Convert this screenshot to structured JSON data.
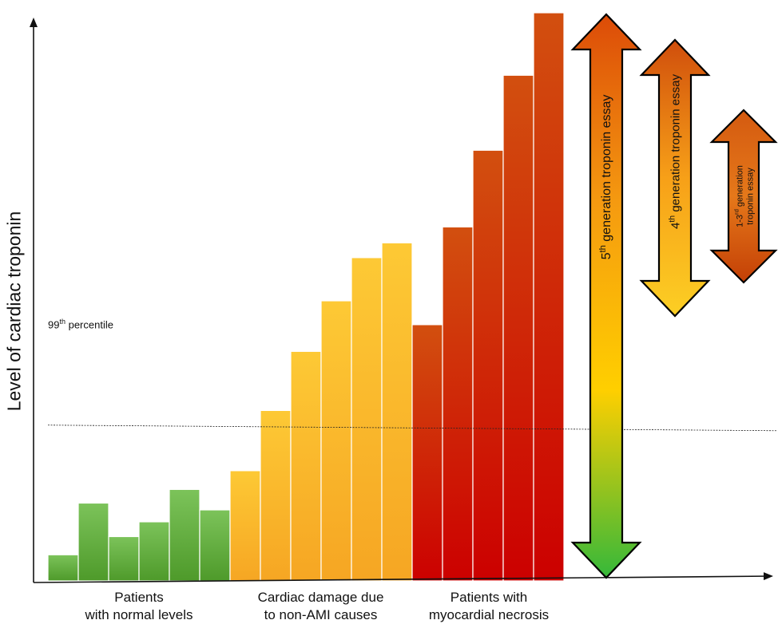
{
  "chart_data": {
    "type": "bar",
    "ylabel": "Level of cardiac troponin",
    "reference_line": {
      "label_prefix": "99",
      "label_sup": "th",
      "label_suffix": " percentile",
      "value": 27
    },
    "ylim": [
      0,
      100
    ],
    "groups": [
      {
        "name_line1": "Patients",
        "name_line2": "with normal levels",
        "color_top": "#7cc35a",
        "color_bottom": "#4e9a2a",
        "values": [
          4.6,
          13.7,
          7.8,
          10.4,
          16.1,
          12.5
        ]
      },
      {
        "name_line1": "Cardiac damage due",
        "name_line2": "to non-AMI causes",
        "color_top": "#fdc935",
        "color_bottom": "#f6a623",
        "values": [
          19.4,
          30.0,
          40.4,
          49.3,
          56.9,
          59.5
        ]
      },
      {
        "name_line1": "Patients with",
        "name_line2": "myocardial necrosis",
        "color_top": "#d24f0f",
        "color_bottom": "#cc0000",
        "values": [
          45.1,
          62.3,
          75.8,
          89.0,
          100.0
        ]
      }
    ],
    "assay_ranges": [
      {
        "prefix": "5",
        "sup": "th",
        "suffix": " generation troponin essay",
        "colors": [
          "#dc4b08",
          "#f59a10",
          "#ffcf00",
          "#35b83a"
        ]
      },
      {
        "prefix": "4",
        "sup": "th",
        "suffix": " generation troponin essay",
        "colors": [
          "#d04e0c",
          "#f7a018",
          "#fccf24"
        ]
      },
      {
        "line1_prefix": "1-3",
        "line1_sup": "rd",
        "line1_suffix": " generation",
        "line2": "troponin essay",
        "colors": [
          "#d45a10",
          "#e5781a",
          "#c44006"
        ]
      }
    ]
  }
}
